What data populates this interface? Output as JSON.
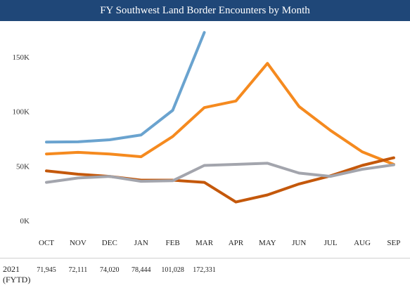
{
  "title": "FY Southwest Land Border Encounters by Month",
  "colors": {
    "header_bg": "#1f4778",
    "header_text": "#ffffff"
  },
  "chart_data": {
    "type": "line",
    "title": "FY Southwest Land Border Encounters by Month",
    "categories": [
      "OCT",
      "NOV",
      "DEC",
      "JAN",
      "FEB",
      "MAR",
      "APR",
      "MAY",
      "JUN",
      "JUL",
      "AUG",
      "SEP"
    ],
    "y_ticks": [
      "0K",
      "50K",
      "100K",
      "150K"
    ],
    "ylim": [
      0,
      180000
    ],
    "grid": false,
    "series": [
      {
        "color": "#6aa3cf",
        "values": [
          71945,
          72111,
          74020,
          78444,
          101028,
          172331,
          null,
          null,
          null,
          null,
          null,
          null
        ]
      },
      {
        "color": "#f58a1f",
        "values": [
          61000,
          62500,
          61000,
          58500,
          77000,
          103500,
          109500,
          144000,
          104500,
          82500,
          63000,
          51500
        ]
      },
      {
        "color": "#c4580b",
        "values": [
          45500,
          42500,
          40500,
          37000,
          37000,
          35000,
          17000,
          23500,
          33500,
          41000,
          50500,
          57500
        ]
      },
      {
        "color": "#a3a5ad",
        "values": [
          35000,
          39000,
          40500,
          36000,
          36500,
          50500,
          51500,
          52500,
          43500,
          40500,
          47000,
          51000
        ]
      }
    ]
  },
  "table": {
    "row_label_year": "2021",
    "row_label_sub": "(FYTD)",
    "values": [
      "71,945",
      "72,111",
      "74,020",
      "78,444",
      "101,028",
      "172,331"
    ]
  }
}
